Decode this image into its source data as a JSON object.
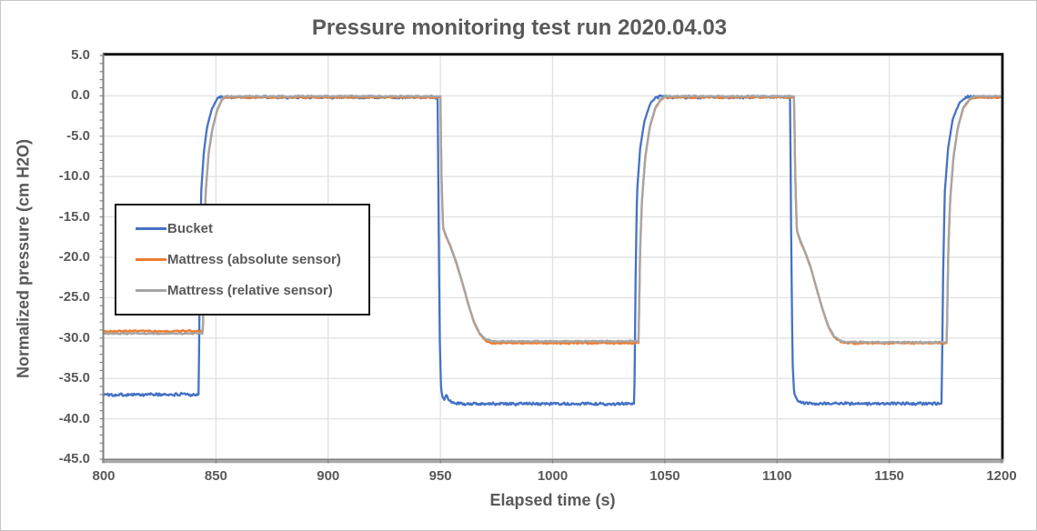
{
  "figure": {
    "background": "#ffffff",
    "border_color": "#c6c6c6"
  },
  "chart_data": {
    "type": "line",
    "title": "Pressure monitoring test run 2020.04.03",
    "xlabel": "Elapsed time (s)",
    "ylabel": "Normalized pressure (cm H2O)",
    "xlim": [
      800,
      1200
    ],
    "ylim": [
      -45,
      5
    ],
    "x_tick_values": [
      800,
      850,
      900,
      950,
      1000,
      1050,
      1100,
      1150,
      1200
    ],
    "x_tick_labels": [
      "800",
      "850",
      "900",
      "950",
      "1000",
      "1050",
      "1100",
      "1150",
      "1200"
    ],
    "y_tick_values": [
      5,
      0,
      -5,
      -10,
      -15,
      -20,
      -25,
      -30,
      -35,
      -40,
      -45
    ],
    "y_tick_labels": [
      "5.0",
      "0.0",
      "-5.0",
      "-10.0",
      "-15.0",
      "-20.0",
      "-25.0",
      "-30.0",
      "-35.0",
      "-40.0",
      "-45.0"
    ],
    "y_minor_tick_step": 1,
    "grid": {
      "show": true,
      "color": "#e2e2e2"
    },
    "axis": {
      "line_color": "#808080",
      "border_color": "#0d0d0d",
      "tick_color": "#808080",
      "label_color": "#595959"
    },
    "legend": {
      "position": "inside-top-left",
      "border_color": "#141414",
      "background": "#ffffff"
    },
    "series": [
      {
        "name": "Bucket",
        "color": "#4472C4",
        "noise": 0.22,
        "seed": 101,
        "points": [
          [
            800,
            -37.0
          ],
          [
            842.3,
            -37.0
          ],
          [
            842.9,
            -20
          ],
          [
            843.4,
            -12
          ],
          [
            844.6,
            -7
          ],
          [
            846,
            -4
          ],
          [
            848,
            -1.8
          ],
          [
            850,
            -0.6
          ],
          [
            851.5,
            -0.15
          ],
          [
            948.8,
            -0.15
          ],
          [
            949.2,
            -15
          ],
          [
            949.7,
            -30
          ],
          [
            950.3,
            -36.3
          ],
          [
            951,
            -37.3
          ],
          [
            951.8,
            -37.6
          ],
          [
            952.6,
            -37.0
          ],
          [
            953.6,
            -37.6
          ],
          [
            955,
            -38.0
          ],
          [
            957,
            -38.15
          ],
          [
            1036.4,
            -38.15
          ],
          [
            1037,
            -22
          ],
          [
            1037.6,
            -12
          ],
          [
            1039,
            -6.5
          ],
          [
            1041,
            -3
          ],
          [
            1043.5,
            -1
          ],
          [
            1046,
            -0.15
          ],
          [
            1105.8,
            -0.15
          ],
          [
            1106.3,
            -18
          ],
          [
            1106.9,
            -33
          ],
          [
            1107.6,
            -36.8
          ],
          [
            1108.6,
            -37.5
          ],
          [
            1110,
            -37.9
          ],
          [
            1112,
            -38.1
          ],
          [
            1173.3,
            -38.1
          ],
          [
            1174,
            -22
          ],
          [
            1174.7,
            -12
          ],
          [
            1176.2,
            -6.5
          ],
          [
            1178.2,
            -3
          ],
          [
            1181,
            -1
          ],
          [
            1184,
            -0.15
          ],
          [
            1200,
            -0.15
          ]
        ]
      },
      {
        "name": "Mattress (absolute sensor)",
        "color": "#ED7D31",
        "noise": 0.13,
        "seed": 202,
        "points": [
          [
            800,
            -29.15
          ],
          [
            844.2,
            -29.15
          ],
          [
            844.8,
            -18
          ],
          [
            845.4,
            -12
          ],
          [
            846.8,
            -7
          ],
          [
            848.5,
            -4
          ],
          [
            850.5,
            -1.9
          ],
          [
            852.5,
            -0.6
          ],
          [
            854,
            -0.18
          ],
          [
            950,
            -0.18
          ],
          [
            950.5,
            -10
          ],
          [
            951.2,
            -16.4
          ],
          [
            952.5,
            -17.4
          ],
          [
            954.5,
            -18.7
          ],
          [
            957,
            -20.6
          ],
          [
            960,
            -23.4
          ],
          [
            962.5,
            -25.9
          ],
          [
            965,
            -28.1
          ],
          [
            967.5,
            -29.5
          ],
          [
            970,
            -30.3
          ],
          [
            973,
            -30.62
          ],
          [
            1038.3,
            -30.62
          ],
          [
            1039,
            -19
          ],
          [
            1039.8,
            -13
          ],
          [
            1041.3,
            -7.6
          ],
          [
            1043.3,
            -3.9
          ],
          [
            1045.8,
            -1.5
          ],
          [
            1048.5,
            -0.4
          ],
          [
            1050.5,
            -0.18
          ],
          [
            1107.6,
            -0.18
          ],
          [
            1108.1,
            -10
          ],
          [
            1108.8,
            -16.7
          ],
          [
            1110.2,
            -17.9
          ],
          [
            1112.5,
            -19.4
          ],
          [
            1115,
            -21.3
          ],
          [
            1118,
            -24.3
          ],
          [
            1120.5,
            -26.7
          ],
          [
            1123,
            -28.7
          ],
          [
            1125.5,
            -29.9
          ],
          [
            1128,
            -30.4
          ],
          [
            1130.5,
            -30.62
          ],
          [
            1175.6,
            -30.62
          ],
          [
            1176.3,
            -19
          ],
          [
            1177.1,
            -13
          ],
          [
            1178.6,
            -7.6
          ],
          [
            1180.6,
            -3.9
          ],
          [
            1183,
            -1.5
          ],
          [
            1186,
            -0.4
          ],
          [
            1188.5,
            -0.18
          ],
          [
            1200,
            -0.18
          ]
        ]
      },
      {
        "name": "Mattress (relative sensor)",
        "color": "#A5A5A5",
        "noise": 0.1,
        "seed": 303,
        "points": [
          [
            800,
            -29.45
          ],
          [
            844.2,
            -29.45
          ],
          [
            844.8,
            -18
          ],
          [
            845.4,
            -12
          ],
          [
            846.8,
            -7
          ],
          [
            848.5,
            -4
          ],
          [
            850.5,
            -1.8
          ],
          [
            852.5,
            -0.5
          ],
          [
            854,
            -0.05
          ],
          [
            950,
            -0.05
          ],
          [
            950.5,
            -10
          ],
          [
            951.2,
            -16.3
          ],
          [
            952.5,
            -17.3
          ],
          [
            954.5,
            -18.6
          ],
          [
            957,
            -20.5
          ],
          [
            960,
            -23.3
          ],
          [
            962.5,
            -25.8
          ],
          [
            965,
            -28
          ],
          [
            967.5,
            -29.4
          ],
          [
            970,
            -30.1
          ],
          [
            973,
            -30.4
          ],
          [
            1038.3,
            -30.4
          ],
          [
            1039,
            -19
          ],
          [
            1039.8,
            -13
          ],
          [
            1041.3,
            -7.5
          ],
          [
            1043.3,
            -3.8
          ],
          [
            1045.8,
            -1.4
          ],
          [
            1048.5,
            -0.3
          ],
          [
            1050.5,
            -0.05
          ],
          [
            1107.6,
            -0.05
          ],
          [
            1108.1,
            -10
          ],
          [
            1108.8,
            -16.6
          ],
          [
            1110.2,
            -17.8
          ],
          [
            1112.5,
            -19.3
          ],
          [
            1115,
            -21.2
          ],
          [
            1118,
            -24.2
          ],
          [
            1120.5,
            -26.6
          ],
          [
            1123,
            -28.6
          ],
          [
            1125.5,
            -29.8
          ],
          [
            1128,
            -30.3
          ],
          [
            1130.5,
            -30.5
          ],
          [
            1175.6,
            -30.5
          ],
          [
            1176.3,
            -19
          ],
          [
            1177.1,
            -13
          ],
          [
            1178.6,
            -7.5
          ],
          [
            1180.6,
            -3.8
          ],
          [
            1183,
            -1.4
          ],
          [
            1186,
            -0.3
          ],
          [
            1188.5,
            -0.05
          ],
          [
            1200,
            -0.05
          ]
        ]
      }
    ]
  }
}
